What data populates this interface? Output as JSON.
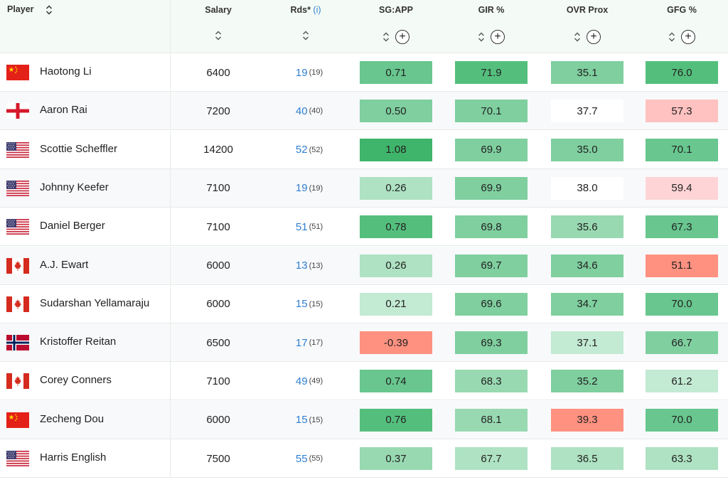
{
  "header": {
    "player": "Player",
    "salary": "Salary",
    "rds": "Rds*",
    "rds_info": "(i)",
    "stat_cols": [
      "SG:APP",
      "GIR %",
      "OVR Prox",
      "GFG %"
    ],
    "plus": "+"
  },
  "colors": {
    "green_1": "#3fb56b",
    "green_2": "#54bf7d",
    "green_3": "#68c68e",
    "green_4": "#7fcf9f",
    "green_5": "#98d9b1",
    "green_6": "#aee2c2",
    "green_7": "#c3ead3",
    "white": "#ffffff",
    "red_1": "#fe9180",
    "red_2": "#ffc2c0",
    "red_3": "#ffd4d6",
    "link": "#2f7fd1"
  },
  "rows": [
    {
      "name": "Haotong Li",
      "flag": "china-flag-icon",
      "salary": "6400",
      "rds": "19",
      "rds_sub": "(19)",
      "stats": [
        {
          "v": "0.71",
          "c": "#68c68e"
        },
        {
          "v": "71.9",
          "c": "#54bf7d"
        },
        {
          "v": "35.1",
          "c": "#7fcf9f"
        },
        {
          "v": "76.0",
          "c": "#54bf7d"
        }
      ]
    },
    {
      "name": "Aaron Rai",
      "flag": "england-flag-icon",
      "salary": "7200",
      "rds": "40",
      "rds_sub": "(40)",
      "stats": [
        {
          "v": "0.50",
          "c": "#7fcf9f"
        },
        {
          "v": "70.1",
          "c": "#7fcf9f"
        },
        {
          "v": "37.7",
          "c": "#ffffff"
        },
        {
          "v": "57.3",
          "c": "#ffc2c0"
        }
      ]
    },
    {
      "name": "Scottie Scheffler",
      "flag": "usa-flag-icon",
      "salary": "14200",
      "rds": "52",
      "rds_sub": "(52)",
      "stats": [
        {
          "v": "1.08",
          "c": "#3fb56b"
        },
        {
          "v": "69.9",
          "c": "#7fcf9f"
        },
        {
          "v": "35.0",
          "c": "#7fcf9f"
        },
        {
          "v": "70.1",
          "c": "#68c68e"
        }
      ]
    },
    {
      "name": "Johnny Keefer",
      "flag": "usa-flag-icon",
      "salary": "7100",
      "rds": "19",
      "rds_sub": "(19)",
      "stats": [
        {
          "v": "0.26",
          "c": "#aee2c2"
        },
        {
          "v": "69.9",
          "c": "#7fcf9f"
        },
        {
          "v": "38.0",
          "c": "#ffffff"
        },
        {
          "v": "59.4",
          "c": "#ffd4d6"
        }
      ]
    },
    {
      "name": "Daniel Berger",
      "flag": "usa-flag-icon",
      "salary": "7100",
      "rds": "51",
      "rds_sub": "(51)",
      "stats": [
        {
          "v": "0.78",
          "c": "#54bf7d"
        },
        {
          "v": "69.8",
          "c": "#7fcf9f"
        },
        {
          "v": "35.6",
          "c": "#98d9b1"
        },
        {
          "v": "67.3",
          "c": "#68c68e"
        }
      ]
    },
    {
      "name": "A.J. Ewart",
      "flag": "canada-flag-icon",
      "salary": "6000",
      "rds": "13",
      "rds_sub": "(13)",
      "stats": [
        {
          "v": "0.26",
          "c": "#aee2c2"
        },
        {
          "v": "69.7",
          "c": "#7fcf9f"
        },
        {
          "v": "34.6",
          "c": "#7fcf9f"
        },
        {
          "v": "51.1",
          "c": "#fe9180"
        }
      ]
    },
    {
      "name": "Sudarshan Yellamaraju",
      "flag": "canada-flag-icon",
      "salary": "6000",
      "rds": "15",
      "rds_sub": "(15)",
      "stats": [
        {
          "v": "0.21",
          "c": "#c3ead3"
        },
        {
          "v": "69.6",
          "c": "#7fcf9f"
        },
        {
          "v": "34.7",
          "c": "#7fcf9f"
        },
        {
          "v": "70.0",
          "c": "#68c68e"
        }
      ]
    },
    {
      "name": "Kristoffer Reitan",
      "flag": "norway-flag-icon",
      "salary": "6500",
      "rds": "17",
      "rds_sub": "(17)",
      "stats": [
        {
          "v": "-0.39",
          "c": "#fe9180"
        },
        {
          "v": "69.3",
          "c": "#7fcf9f"
        },
        {
          "v": "37.1",
          "c": "#c3ead3"
        },
        {
          "v": "66.7",
          "c": "#7fcf9f"
        }
      ]
    },
    {
      "name": "Corey Conners",
      "flag": "canada-flag-icon",
      "salary": "7100",
      "rds": "49",
      "rds_sub": "(49)",
      "stats": [
        {
          "v": "0.74",
          "c": "#68c68e"
        },
        {
          "v": "68.3",
          "c": "#98d9b1"
        },
        {
          "v": "35.2",
          "c": "#7fcf9f"
        },
        {
          "v": "61.2",
          "c": "#c3ead3"
        }
      ]
    },
    {
      "name": "Zecheng Dou",
      "flag": "china-flag-icon",
      "salary": "6000",
      "rds": "15",
      "rds_sub": "(15)",
      "stats": [
        {
          "v": "0.76",
          "c": "#54bf7d"
        },
        {
          "v": "68.1",
          "c": "#98d9b1"
        },
        {
          "v": "39.3",
          "c": "#fe9180"
        },
        {
          "v": "70.0",
          "c": "#68c68e"
        }
      ]
    },
    {
      "name": "Harris English",
      "flag": "usa-flag-icon",
      "salary": "7500",
      "rds": "55",
      "rds_sub": "(55)",
      "stats": [
        {
          "v": "0.37",
          "c": "#98d9b1"
        },
        {
          "v": "67.7",
          "c": "#aee2c2"
        },
        {
          "v": "36.5",
          "c": "#aee2c2"
        },
        {
          "v": "63.3",
          "c": "#aee2c2"
        }
      ]
    }
  ]
}
